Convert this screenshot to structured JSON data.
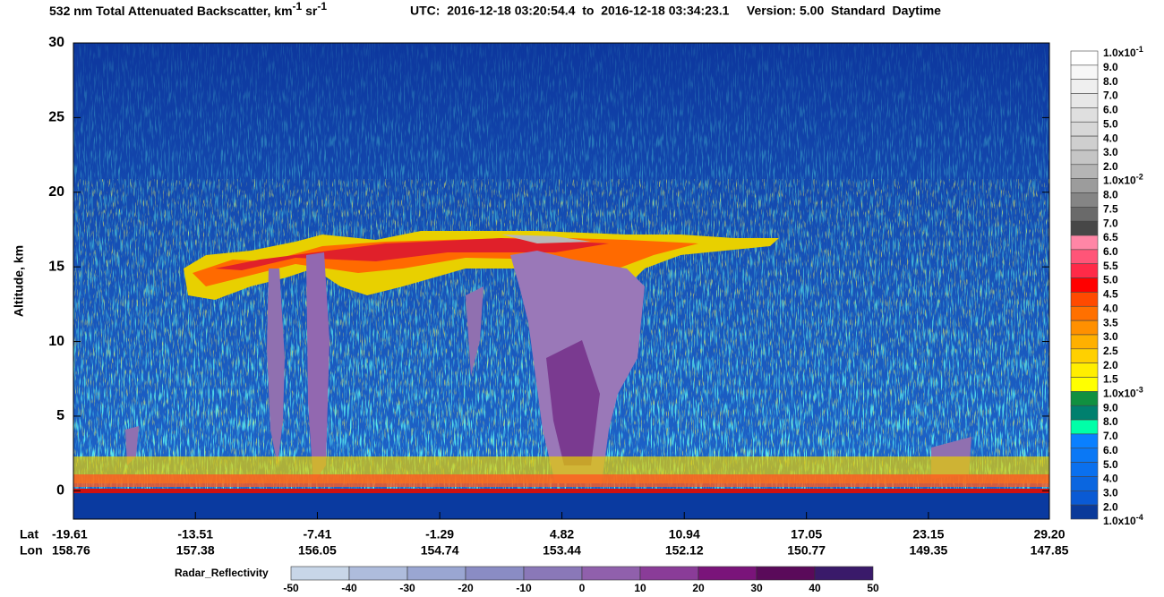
{
  "chart_data": {
    "type": "curtain",
    "title": [
      "532 nm Total Attenuated Backscatter, km",
      "-1",
      " sr",
      "-1"
    ],
    "subtitle": "UTC:  2016-12-18 03:20:54.4  to  2016-12-18 03:34:23.1     Version: 5.00  Standard  Daytime",
    "y_label": "Altitude, km",
    "ylim": [
      -1.9,
      30
    ],
    "yticks": [
      0,
      5,
      10,
      15,
      20,
      25,
      30
    ],
    "x_row_labels": [
      "Lat",
      "Lon"
    ],
    "xlim": [
      -19.61,
      29.2
    ],
    "xticks": [
      -19.61,
      -13.51,
      -7.41,
      -1.29,
      4.82,
      10.94,
      17.05,
      23.15,
      {
        "value": 29.2,
        "label": "29.20"
      }
    ],
    "lon_labels": [
      158.76,
      157.38,
      156.05,
      154.74,
      153.44,
      152.12,
      150.77,
      149.35,
      147.85
    ],
    "colorbar": {
      "labels": [
        {
          "text": "1.0x10",
          "sup": "-1"
        },
        "9.0",
        "8.0",
        "7.0",
        "6.0",
        "5.0",
        "4.0",
        "3.0",
        "2.0",
        {
          "text": "1.0x10",
          "sup": "-2"
        },
        "8.0",
        "7.5",
        "7.0",
        "6.5",
        "6.0",
        "5.5",
        "5.0",
        "4.5",
        "4.0",
        "3.5",
        "3.0",
        "2.5",
        "2.0",
        "1.5",
        {
          "text": "1.0x10",
          "sup": "-3"
        },
        "9.0",
        "8.0",
        "7.0",
        "6.0",
        "5.0",
        "4.0",
        "3.0",
        "2.0",
        {
          "text": "1.0x10",
          "sup": "-4"
        }
      ],
      "colors": [
        "#ffffff",
        "#f7f7f7",
        "#efefef",
        "#e7e7e7",
        "#dfdfdf",
        "#d7d7d7",
        "#cfcfcf",
        "#c5c5c5",
        "#b5b5b5",
        "#9c9c9c",
        "#858585",
        "#6a6a6a",
        "#474747",
        "#ff86a6",
        "#ff5578",
        "#ff2a48",
        "#ff0000",
        "#ff4a00",
        "#ff7000",
        "#ff9000",
        "#ffb000",
        "#ffd000",
        "#ffee00",
        "#ffff00",
        "#109040",
        "#00806e",
        "#00ffa8",
        "#0a80ff",
        "#0a78f5",
        "#0a70ee",
        "#0a66e0",
        "#0a5ad4",
        "#0a3a9a"
      ]
    },
    "radar_colorbar": {
      "label": "Radar_Reflectivity",
      "ticks": [
        -50,
        -40,
        -30,
        -20,
        -10,
        0,
        10,
        20,
        30,
        40,
        50
      ],
      "colors": [
        "#c8d6e8",
        "#aebcdc",
        "#9aa6d2",
        "#8a8cc4",
        "#8a78b8",
        "#9060ac",
        "#8a3c98",
        "#7a147a",
        "#5a0a5a",
        "#3a1a6a",
        "#3a0a8a"
      ]
    }
  }
}
